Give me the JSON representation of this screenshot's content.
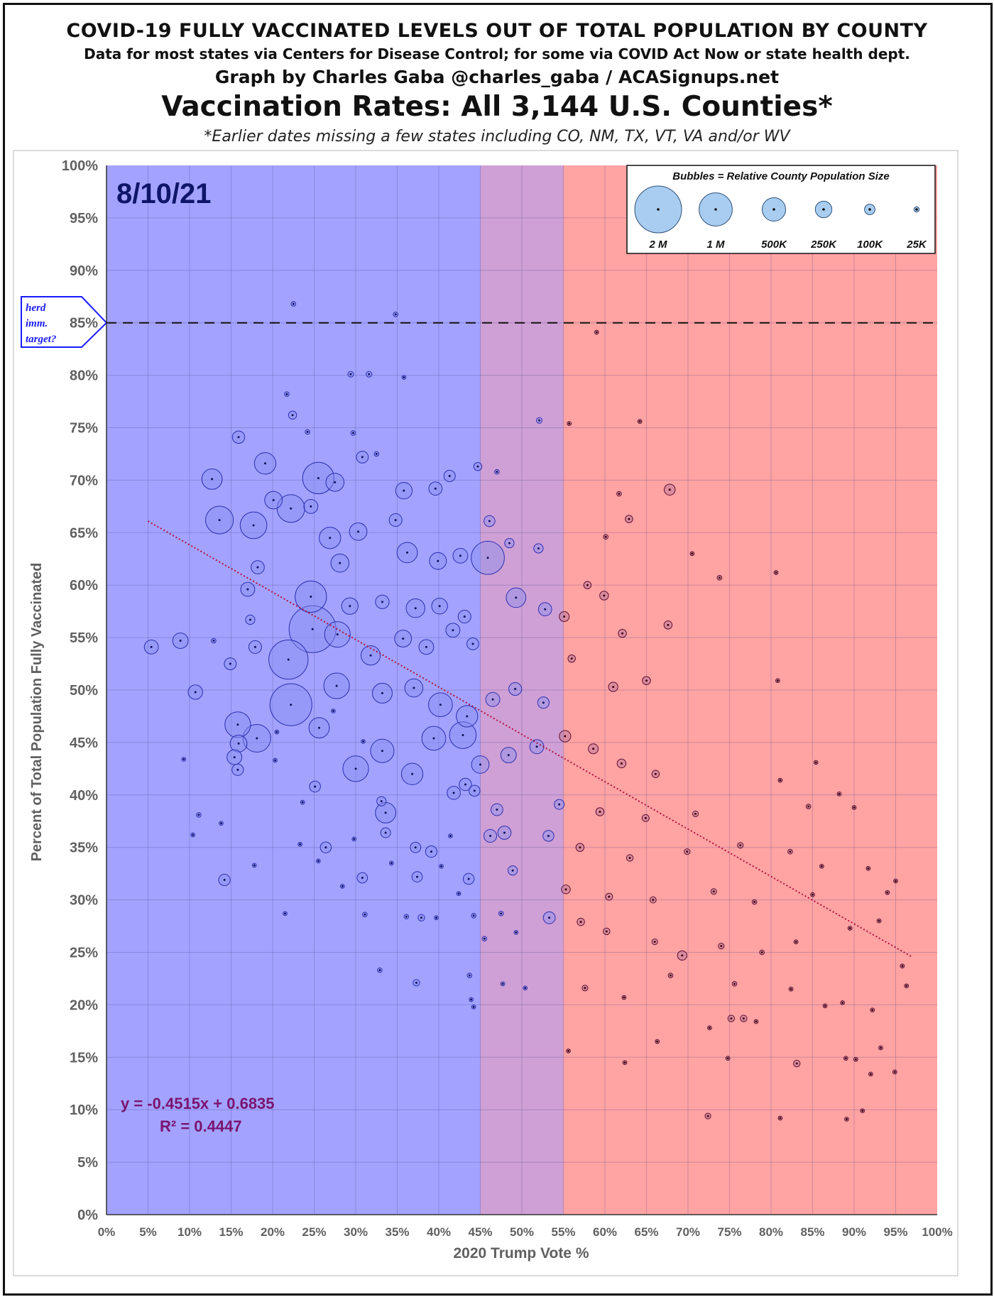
{
  "header": {
    "line1": "COVID-19 FULLY VACCINATED LEVELS OUT OF TOTAL POPULATION BY COUNTY",
    "line2": "Data for most states via Centers for Disease Control; for some via COVID Act Now or state health dept.",
    "line3": "Graph by Charles Gaba @charles_gaba / ACASignups.net",
    "title": "Vaccination Rates: All 3,144 U.S. Counties*",
    "footnote": "*Earlier dates missing a few states including CO, NM, TX, VT, VA and/or WV"
  },
  "colors": {
    "blue_zone": "#a3a3ff",
    "purple_zone": "#cfa0d5",
    "red_zone": "#ffa3a3",
    "blue_bubble_fill": "#8a8ef0",
    "blue_bubble_stroke": "#2b2fb0",
    "red_bubble_fill": "#c07a9a",
    "red_bubble_stroke": "#5a1030",
    "trendline": "#b0103a",
    "date_text": "#0f1568",
    "equation_text": "#7a1470",
    "herd_text": "#1a1aff"
  },
  "chart_data": {
    "type": "scatter",
    "date_label": "8/10/21",
    "xlabel": "2020 Trump Vote %",
    "ylabel": "Percent of Total Population Fully Vaccinated",
    "xlim": [
      0,
      100
    ],
    "ylim": [
      0,
      100
    ],
    "x_ticks": [
      "0%",
      "5%",
      "10%",
      "15%",
      "20%",
      "25%",
      "30%",
      "35%",
      "40%",
      "45%",
      "50%",
      "55%",
      "60%",
      "65%",
      "70%",
      "75%",
      "80%",
      "85%",
      "90%",
      "95%",
      "100%"
    ],
    "y_ticks": [
      "0%",
      "5%",
      "10%",
      "15%",
      "20%",
      "25%",
      "30%",
      "35%",
      "40%",
      "45%",
      "50%",
      "55%",
      "60%",
      "65%",
      "70%",
      "75%",
      "80%",
      "85%",
      "90%",
      "95%",
      "100%"
    ],
    "grid": true,
    "zones": [
      {
        "from": 0,
        "to": 45,
        "color": "blue"
      },
      {
        "from": 45,
        "to": 55,
        "color": "purple"
      },
      {
        "from": 55,
        "to": 100,
        "color": "red"
      }
    ],
    "reference_line": {
      "y": 85,
      "style": "dashed"
    },
    "herd_callout": [
      "herd",
      "imm.",
      "target?"
    ],
    "trendline": {
      "slope": -0.4515,
      "intercept": 0.6835,
      "x_range": [
        5,
        97
      ]
    },
    "equation": "y = -0.4515x + 0.6835",
    "r_squared": "R² = 0.4447",
    "legend": {
      "title": "Bubbles = Relative  County Population Size",
      "placement": "top-right",
      "sizes": [
        {
          "label": "2 M",
          "population": 2000000
        },
        {
          "label": "1 M",
          "population": 1000000
        },
        {
          "label": "500K",
          "population": 500000
        },
        {
          "label": "250K",
          "population": 250000
        },
        {
          "label": "100K",
          "population": 100000
        },
        {
          "label": "25K",
          "population": 25000
        }
      ]
    },
    "counties": [
      [
        22.5,
        86.8,
        20000
      ],
      [
        34.8,
        85.8,
        20000
      ],
      [
        59.0,
        84.1,
        15000
      ],
      [
        29.4,
        80.1,
        30000
      ],
      [
        31.6,
        80.1,
        30000
      ],
      [
        35.8,
        79.8,
        15000
      ],
      [
        21.7,
        78.2,
        20000
      ],
      [
        22.4,
        76.2,
        60000
      ],
      [
        52.1,
        75.7,
        30000
      ],
      [
        24.2,
        74.6,
        20000
      ],
      [
        29.7,
        74.5,
        20000
      ],
      [
        55.7,
        75.4,
        15000
      ],
      [
        64.2,
        75.6,
        15000
      ],
      [
        15.9,
        74.1,
        140000
      ],
      [
        19.1,
        71.6,
        420000
      ],
      [
        30.8,
        72.2,
        130000
      ],
      [
        32.5,
        72.5,
        20000
      ],
      [
        12.7,
        70.1,
        380000
      ],
      [
        25.5,
        70.2,
        900000
      ],
      [
        27.5,
        69.8,
        300000
      ],
      [
        44.7,
        71.3,
        60000
      ],
      [
        47.0,
        70.8,
        20000
      ],
      [
        35.8,
        69.0,
        250000
      ],
      [
        39.6,
        69.2,
        160000
      ],
      [
        41.3,
        70.4,
        120000
      ],
      [
        67.8,
        69.1,
        110000
      ],
      [
        13.6,
        66.2,
        700000
      ],
      [
        17.7,
        65.7,
        650000
      ],
      [
        20.1,
        68.1,
        280000
      ],
      [
        22.2,
        67.3,
        700000
      ],
      [
        24.6,
        67.5,
        180000
      ],
      [
        26.9,
        64.5,
        420000
      ],
      [
        30.3,
        65.1,
        280000
      ],
      [
        34.8,
        66.2,
        150000
      ],
      [
        36.2,
        63.1,
        380000
      ],
      [
        39.9,
        62.3,
        260000
      ],
      [
        42.6,
        62.8,
        200000
      ],
      [
        45.9,
        62.6,
        1000000
      ],
      [
        46.1,
        66.1,
        110000
      ],
      [
        48.5,
        64.0,
        80000
      ],
      [
        52.0,
        63.5,
        80000
      ],
      [
        62.9,
        66.3,
        50000
      ],
      [
        60.1,
        64.6,
        20000
      ],
      [
        61.7,
        68.7,
        20000
      ],
      [
        18.2,
        61.7,
        160000
      ],
      [
        17.0,
        59.6,
        180000
      ],
      [
        24.6,
        58.9,
        900000
      ],
      [
        28.1,
        62.1,
        300000
      ],
      [
        29.3,
        58.0,
        250000
      ],
      [
        33.2,
        58.4,
        170000
      ],
      [
        37.2,
        57.8,
        320000
      ],
      [
        40.1,
        58.0,
        230000
      ],
      [
        43.1,
        57.0,
        150000
      ],
      [
        49.3,
        58.8,
        350000
      ],
      [
        52.8,
        57.7,
        160000
      ],
      [
        55.1,
        57.0,
        90000
      ],
      [
        59.9,
        59.0,
        70000
      ],
      [
        57.9,
        60.0,
        50000
      ],
      [
        62.1,
        55.4,
        60000
      ],
      [
        73.8,
        60.7,
        20000
      ],
      [
        80.6,
        61.2,
        15000
      ],
      [
        70.5,
        63.0,
        15000
      ],
      [
        17.3,
        56.7,
        80000
      ],
      [
        8.9,
        54.7,
        220000
      ],
      [
        5.4,
        54.1,
        180000
      ],
      [
        12.9,
        54.7,
        20000
      ],
      [
        17.9,
        54.1,
        150000
      ],
      [
        24.8,
        55.8,
        2000000
      ],
      [
        21.9,
        52.9,
        1400000
      ],
      [
        27.8,
        55.3,
        600000
      ],
      [
        31.8,
        53.3,
        340000
      ],
      [
        35.7,
        54.9,
        260000
      ],
      [
        38.5,
        54.1,
        200000
      ],
      [
        41.7,
        55.7,
        180000
      ],
      [
        44.1,
        54.4,
        130000
      ],
      [
        67.6,
        56.2,
        60000
      ],
      [
        56.0,
        53.0,
        50000
      ],
      [
        14.9,
        52.5,
        130000
      ],
      [
        10.7,
        49.8,
        190000
      ],
      [
        22.2,
        48.6,
        1600000
      ],
      [
        27.7,
        50.4,
        600000
      ],
      [
        33.2,
        49.7,
        360000
      ],
      [
        37.0,
        50.2,
        300000
      ],
      [
        40.2,
        48.6,
        520000
      ],
      [
        43.4,
        47.5,
        420000
      ],
      [
        46.5,
        49.1,
        180000
      ],
      [
        49.2,
        50.1,
        150000
      ],
      [
        52.6,
        48.8,
        120000
      ],
      [
        61.0,
        50.3,
        80000
      ],
      [
        65.0,
        50.9,
        60000
      ],
      [
        80.8,
        50.9,
        15000
      ],
      [
        15.8,
        46.7,
        600000
      ],
      [
        18.1,
        45.4,
        700000
      ],
      [
        25.6,
        46.4,
        380000
      ],
      [
        15.9,
        44.9,
        260000
      ],
      [
        15.4,
        43.6,
        200000
      ],
      [
        30.0,
        42.5,
        600000
      ],
      [
        33.2,
        44.2,
        500000
      ],
      [
        36.8,
        42.0,
        420000
      ],
      [
        39.4,
        45.4,
        520000
      ],
      [
        42.9,
        45.7,
        650000
      ],
      [
        45.0,
        42.9,
        280000
      ],
      [
        48.4,
        43.8,
        220000
      ],
      [
        51.8,
        44.6,
        180000
      ],
      [
        55.2,
        45.6,
        120000
      ],
      [
        58.6,
        44.4,
        90000
      ],
      [
        62.0,
        43.0,
        70000
      ],
      [
        66.1,
        42.0,
        50000
      ],
      [
        15.8,
        42.4,
        120000
      ],
      [
        11.1,
        38.1,
        20000
      ],
      [
        25.1,
        40.8,
        110000
      ],
      [
        33.6,
        38.3,
        380000
      ],
      [
        33.1,
        39.4,
        80000
      ],
      [
        41.8,
        40.2,
        160000
      ],
      [
        43.2,
        41.0,
        140000
      ],
      [
        44.3,
        40.4,
        110000
      ],
      [
        47.0,
        38.6,
        130000
      ],
      [
        54.5,
        39.1,
        90000
      ],
      [
        59.4,
        38.4,
        60000
      ],
      [
        64.9,
        37.8,
        45000
      ],
      [
        70.9,
        38.2,
        30000
      ],
      [
        84.5,
        38.9,
        20000
      ],
      [
        90.0,
        38.8,
        15000
      ],
      [
        26.4,
        35.0,
        110000
      ],
      [
        33.6,
        36.4,
        90000
      ],
      [
        37.2,
        35.0,
        100000
      ],
      [
        39.1,
        34.6,
        120000
      ],
      [
        46.2,
        36.1,
        150000
      ],
      [
        47.9,
        36.4,
        160000
      ],
      [
        53.2,
        36.1,
        110000
      ],
      [
        57.0,
        35.0,
        60000
      ],
      [
        63.0,
        34.0,
        40000
      ],
      [
        69.9,
        34.6,
        30000
      ],
      [
        76.3,
        35.2,
        30000
      ],
      [
        82.3,
        34.6,
        20000
      ],
      [
        14.2,
        31.9,
        120000
      ],
      [
        30.8,
        32.1,
        100000
      ],
      [
        37.4,
        32.2,
        100000
      ],
      [
        43.6,
        32.0,
        110000
      ],
      [
        48.9,
        32.8,
        80000
      ],
      [
        55.3,
        31.0,
        70000
      ],
      [
        60.5,
        30.3,
        45000
      ],
      [
        65.8,
        30.0,
        35000
      ],
      [
        73.1,
        30.8,
        30000
      ],
      [
        78.0,
        29.8,
        20000
      ],
      [
        85.0,
        30.5,
        15000
      ],
      [
        53.3,
        28.3,
        130000
      ],
      [
        47.5,
        28.7,
        20000
      ],
      [
        44.2,
        28.5,
        20000
      ],
      [
        36.1,
        28.4,
        20000
      ],
      [
        37.9,
        28.3,
        40000
      ],
      [
        57.1,
        27.9,
        50000
      ],
      [
        60.2,
        27.0,
        40000
      ],
      [
        66.0,
        26.0,
        30000
      ],
      [
        69.3,
        24.7,
        80000
      ],
      [
        74.0,
        25.6,
        30000
      ],
      [
        78.9,
        25.0,
        20000
      ],
      [
        83.0,
        26.0,
        15000
      ],
      [
        89.5,
        27.3,
        15000
      ],
      [
        45.5,
        26.3,
        20000
      ],
      [
        49.3,
        26.9,
        15000
      ],
      [
        37.3,
        22.1,
        40000
      ],
      [
        32.9,
        23.3,
        20000
      ],
      [
        43.7,
        22.8,
        20000
      ],
      [
        47.7,
        22.0,
        15000
      ],
      [
        57.6,
        21.6,
        30000
      ],
      [
        67.9,
        22.8,
        20000
      ],
      [
        75.6,
        22.0,
        20000
      ],
      [
        82.4,
        21.5,
        15000
      ],
      [
        88.6,
        20.2,
        15000
      ],
      [
        43.9,
        20.5,
        15000
      ],
      [
        44.2,
        19.8,
        15000
      ],
      [
        50.4,
        21.6,
        15000
      ],
      [
        62.3,
        20.7,
        15000
      ],
      [
        75.2,
        18.7,
        40000
      ],
      [
        76.7,
        18.7,
        40000
      ],
      [
        86.5,
        19.9,
        15000
      ],
      [
        92.2,
        19.5,
        15000
      ],
      [
        72.6,
        17.8,
        15000
      ],
      [
        78.2,
        18.4,
        15000
      ],
      [
        55.6,
        15.6,
        15000
      ],
      [
        66.3,
        16.5,
        15000
      ],
      [
        74.8,
        14.9,
        15000
      ],
      [
        83.1,
        14.4,
        40000
      ],
      [
        89.0,
        14.9,
        15000
      ],
      [
        90.2,
        14.8,
        15000
      ],
      [
        93.2,
        15.9,
        15000
      ],
      [
        62.4,
        14.5,
        15000
      ],
      [
        72.4,
        9.4,
        30000
      ],
      [
        81.1,
        9.2,
        15000
      ],
      [
        89.1,
        9.1,
        15000
      ],
      [
        91.0,
        9.9,
        15000
      ],
      [
        92.0,
        13.4,
        15000
      ],
      [
        94.9,
        13.6,
        15000
      ],
      [
        96.3,
        21.8,
        15000
      ],
      [
        95.8,
        23.7,
        15000
      ],
      [
        94.0,
        30.7,
        15000
      ],
      [
        93.0,
        28.0,
        15000
      ],
      [
        91.7,
        33.0,
        15000
      ],
      [
        95.0,
        31.8,
        15000
      ],
      [
        86.1,
        33.2,
        15000
      ],
      [
        81.1,
        41.4,
        15000
      ],
      [
        85.4,
        43.1,
        15000
      ],
      [
        88.2,
        40.1,
        15000
      ],
      [
        10.4,
        36.2,
        15000
      ],
      [
        13.8,
        37.3,
        15000
      ],
      [
        9.3,
        43.4,
        15000
      ],
      [
        17.8,
        33.3,
        15000
      ],
      [
        21.5,
        28.7,
        15000
      ],
      [
        23.6,
        39.3,
        15000
      ],
      [
        25.5,
        33.7,
        15000
      ],
      [
        29.8,
        35.8,
        15000
      ],
      [
        31.1,
        28.6,
        20000
      ],
      [
        30.9,
        45.1,
        15000
      ],
      [
        20.5,
        46.0,
        15000
      ],
      [
        27.3,
        48.0,
        15000
      ],
      [
        41.4,
        36.1,
        15000
      ],
      [
        42.4,
        30.6,
        15000
      ],
      [
        40.3,
        33.2,
        15000
      ],
      [
        39.7,
        28.3,
        15000
      ],
      [
        20.3,
        43.3,
        15000
      ],
      [
        23.3,
        35.3,
        15000
      ],
      [
        28.4,
        31.3,
        15000
      ],
      [
        34.3,
        33.5,
        15000
      ]
    ]
  }
}
